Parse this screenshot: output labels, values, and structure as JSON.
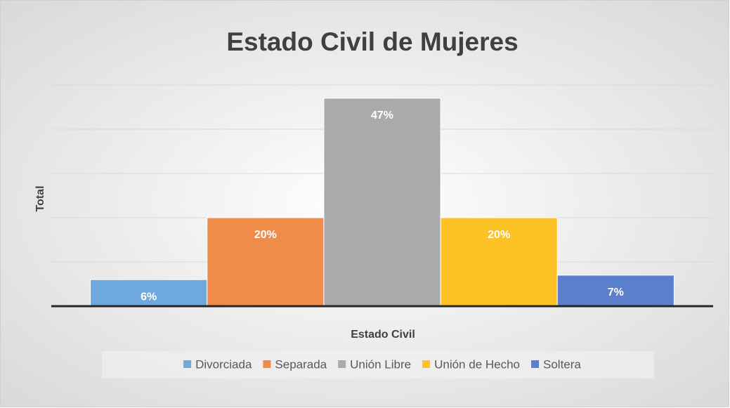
{
  "chart_data": {
    "type": "bar",
    "title": "Estado Civil de Mujeres",
    "x_label": "Estado Civil",
    "y_label": "Total",
    "series": [
      {
        "name": "Divorciada",
        "color": "#6fa8dc",
        "values": [
          6
        ],
        "value_labels": [
          "6%"
        ]
      },
      {
        "name": "Separada",
        "color": "#ef8c4a",
        "values": [
          20
        ],
        "value_labels": [
          "20%"
        ]
      },
      {
        "name": "Unión Libre",
        "color": "#aaaaaa",
        "values": [
          47
        ],
        "value_labels": [
          "47%"
        ]
      },
      {
        "name": "Unión de Hecho",
        "color": "#fdc224",
        "values": [
          20
        ],
        "value_labels": [
          "20%"
        ]
      },
      {
        "name": "Soltera",
        "color": "#5b7fcb",
        "values": [
          7
        ],
        "value_labels": [
          "7%"
        ]
      }
    ],
    "ylim": [
      0,
      50
    ],
    "yticks": [
      0,
      10,
      20,
      30,
      40,
      50
    ],
    "grid": true,
    "legend": "bottom"
  }
}
